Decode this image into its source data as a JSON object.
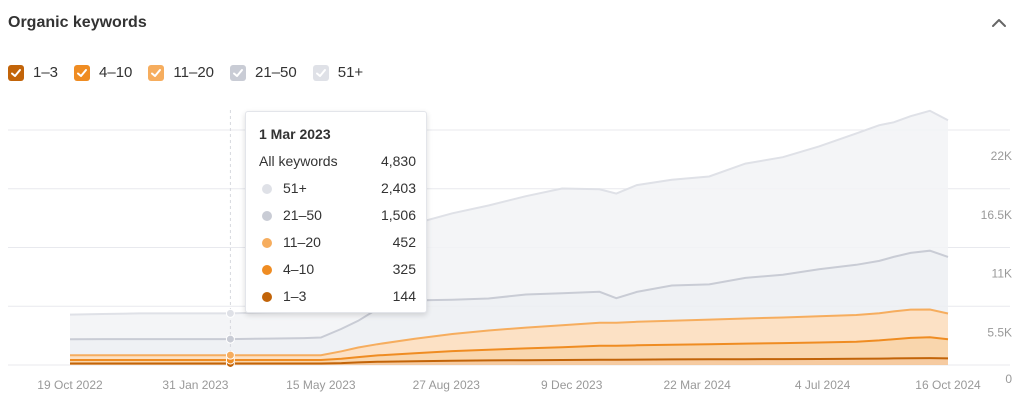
{
  "header": {
    "title": "Organic keywords"
  },
  "legend": [
    {
      "label": "1–3",
      "checked": true,
      "box_color": "#c26409"
    },
    {
      "label": "4–10",
      "checked": true,
      "box_color": "#ef8c22"
    },
    {
      "label": "11–20",
      "checked": true,
      "box_color": "#f6ad5e"
    },
    {
      "label": "21–50",
      "checked": true,
      "box_color": "#c9ccd5"
    },
    {
      "label": "51+",
      "checked": true,
      "box_color": "#dfe1e7"
    }
  ],
  "tooltip": {
    "date": "1 Mar 2023",
    "rows": [
      {
        "label": "All keywords",
        "value": "4,830",
        "color": ""
      },
      {
        "label": "51+",
        "value": "2,403",
        "color": "#dfe1e7"
      },
      {
        "label": "21–50",
        "value": "1,506",
        "color": "#c9ccd5"
      },
      {
        "label": "11–20",
        "value": "452",
        "color": "#f6ad5e"
      },
      {
        "label": "4–10",
        "value": "325",
        "color": "#ef8c22"
      },
      {
        "label": "1–3",
        "value": "144",
        "color": "#c26409"
      }
    ]
  },
  "chart_data": {
    "type": "area",
    "stacked": true,
    "x": [
      "2022-10-19",
      "2022-11-15",
      "2022-12-15",
      "2023-01-15",
      "2023-03-01",
      "2023-04-01",
      "2023-05-01",
      "2023-05-15",
      "2023-06-01",
      "2023-06-15",
      "2023-07-01",
      "2023-08-01",
      "2023-09-01",
      "2023-10-01",
      "2023-11-01",
      "2023-12-01",
      "2024-01-01",
      "2024-01-15",
      "2024-02-01",
      "2024-03-01",
      "2024-04-01",
      "2024-05-01",
      "2024-06-01",
      "2024-07-01",
      "2024-08-01",
      "2024-08-20",
      "2024-09-01",
      "2024-09-15",
      "2024-10-01",
      "2024-10-16"
    ],
    "x_tick_labels": [
      "19 Oct 2022",
      "31 Jan 2023",
      "15 May 2023",
      "27 Aug 2023",
      "9 Dec 2023",
      "22 Mar 2024",
      "4 Jul 2024",
      "16 Oct 2024"
    ],
    "x_tick_dates": [
      "2022-10-19",
      "2023-01-31",
      "2023-05-15",
      "2023-08-27",
      "2023-12-09",
      "2024-03-22",
      "2024-07-04",
      "2024-10-16"
    ],
    "y_ticks": [
      {
        "value": 0,
        "label": "0"
      },
      {
        "value": 5500,
        "label": "5.5K"
      },
      {
        "value": 11000,
        "label": "11K"
      },
      {
        "value": 16500,
        "label": "16.5K"
      },
      {
        "value": 22000,
        "label": "22K"
      }
    ],
    "ylim": [
      0,
      22000
    ],
    "highlight_x": "2023-03-01",
    "series": [
      {
        "name": "1–3",
        "color": "#c26409",
        "values": [
          144,
          144,
          144,
          144,
          144,
          144,
          144,
          144,
          180,
          240,
          300,
          350,
          400,
          430,
          450,
          470,
          500,
          500,
          510,
          520,
          530,
          540,
          550,
          560,
          580,
          600,
          620,
          640,
          650,
          620
        ]
      },
      {
        "name": "4–10",
        "color": "#ef8c22",
        "values": [
          325,
          325,
          325,
          325,
          325,
          325,
          325,
          325,
          400,
          500,
          600,
          750,
          900,
          1000,
          1100,
          1200,
          1300,
          1300,
          1330,
          1370,
          1420,
          1460,
          1500,
          1550,
          1600,
          1700,
          1800,
          1900,
          1950,
          1800
        ]
      },
      {
        "name": "11–20",
        "color": "#f6ad5e",
        "values": [
          450,
          452,
          452,
          452,
          452,
          452,
          452,
          452,
          700,
          900,
          1050,
          1350,
          1600,
          1800,
          1950,
          2050,
          2150,
          2150,
          2200,
          2250,
          2300,
          2350,
          2400,
          2450,
          2500,
          2550,
          2600,
          2650,
          2600,
          2400
        ]
      },
      {
        "name": "21–50",
        "color": "#c9ccd5",
        "values": [
          1500,
          1500,
          1506,
          1506,
          1506,
          1550,
          1600,
          1650,
          2100,
          2500,
          3300,
          3600,
          3200,
          3000,
          3100,
          3000,
          2900,
          2300,
          2800,
          3300,
          3300,
          3800,
          4000,
          4400,
          4700,
          4900,
          5100,
          5300,
          5500,
          5300
        ]
      },
      {
        "name": "51+",
        "color": "#dfe1e7",
        "values": [
          2300,
          2350,
          2400,
          2403,
          2403,
          2450,
          2450,
          2450,
          3800,
          4700,
          5700,
          7200,
          8100,
          8700,
          9200,
          9800,
          9600,
          9800,
          10000,
          9900,
          10100,
          10700,
          11000,
          11500,
          12300,
          12700,
          12600,
          12800,
          13100,
          12800
        ]
      }
    ],
    "grid": true
  }
}
